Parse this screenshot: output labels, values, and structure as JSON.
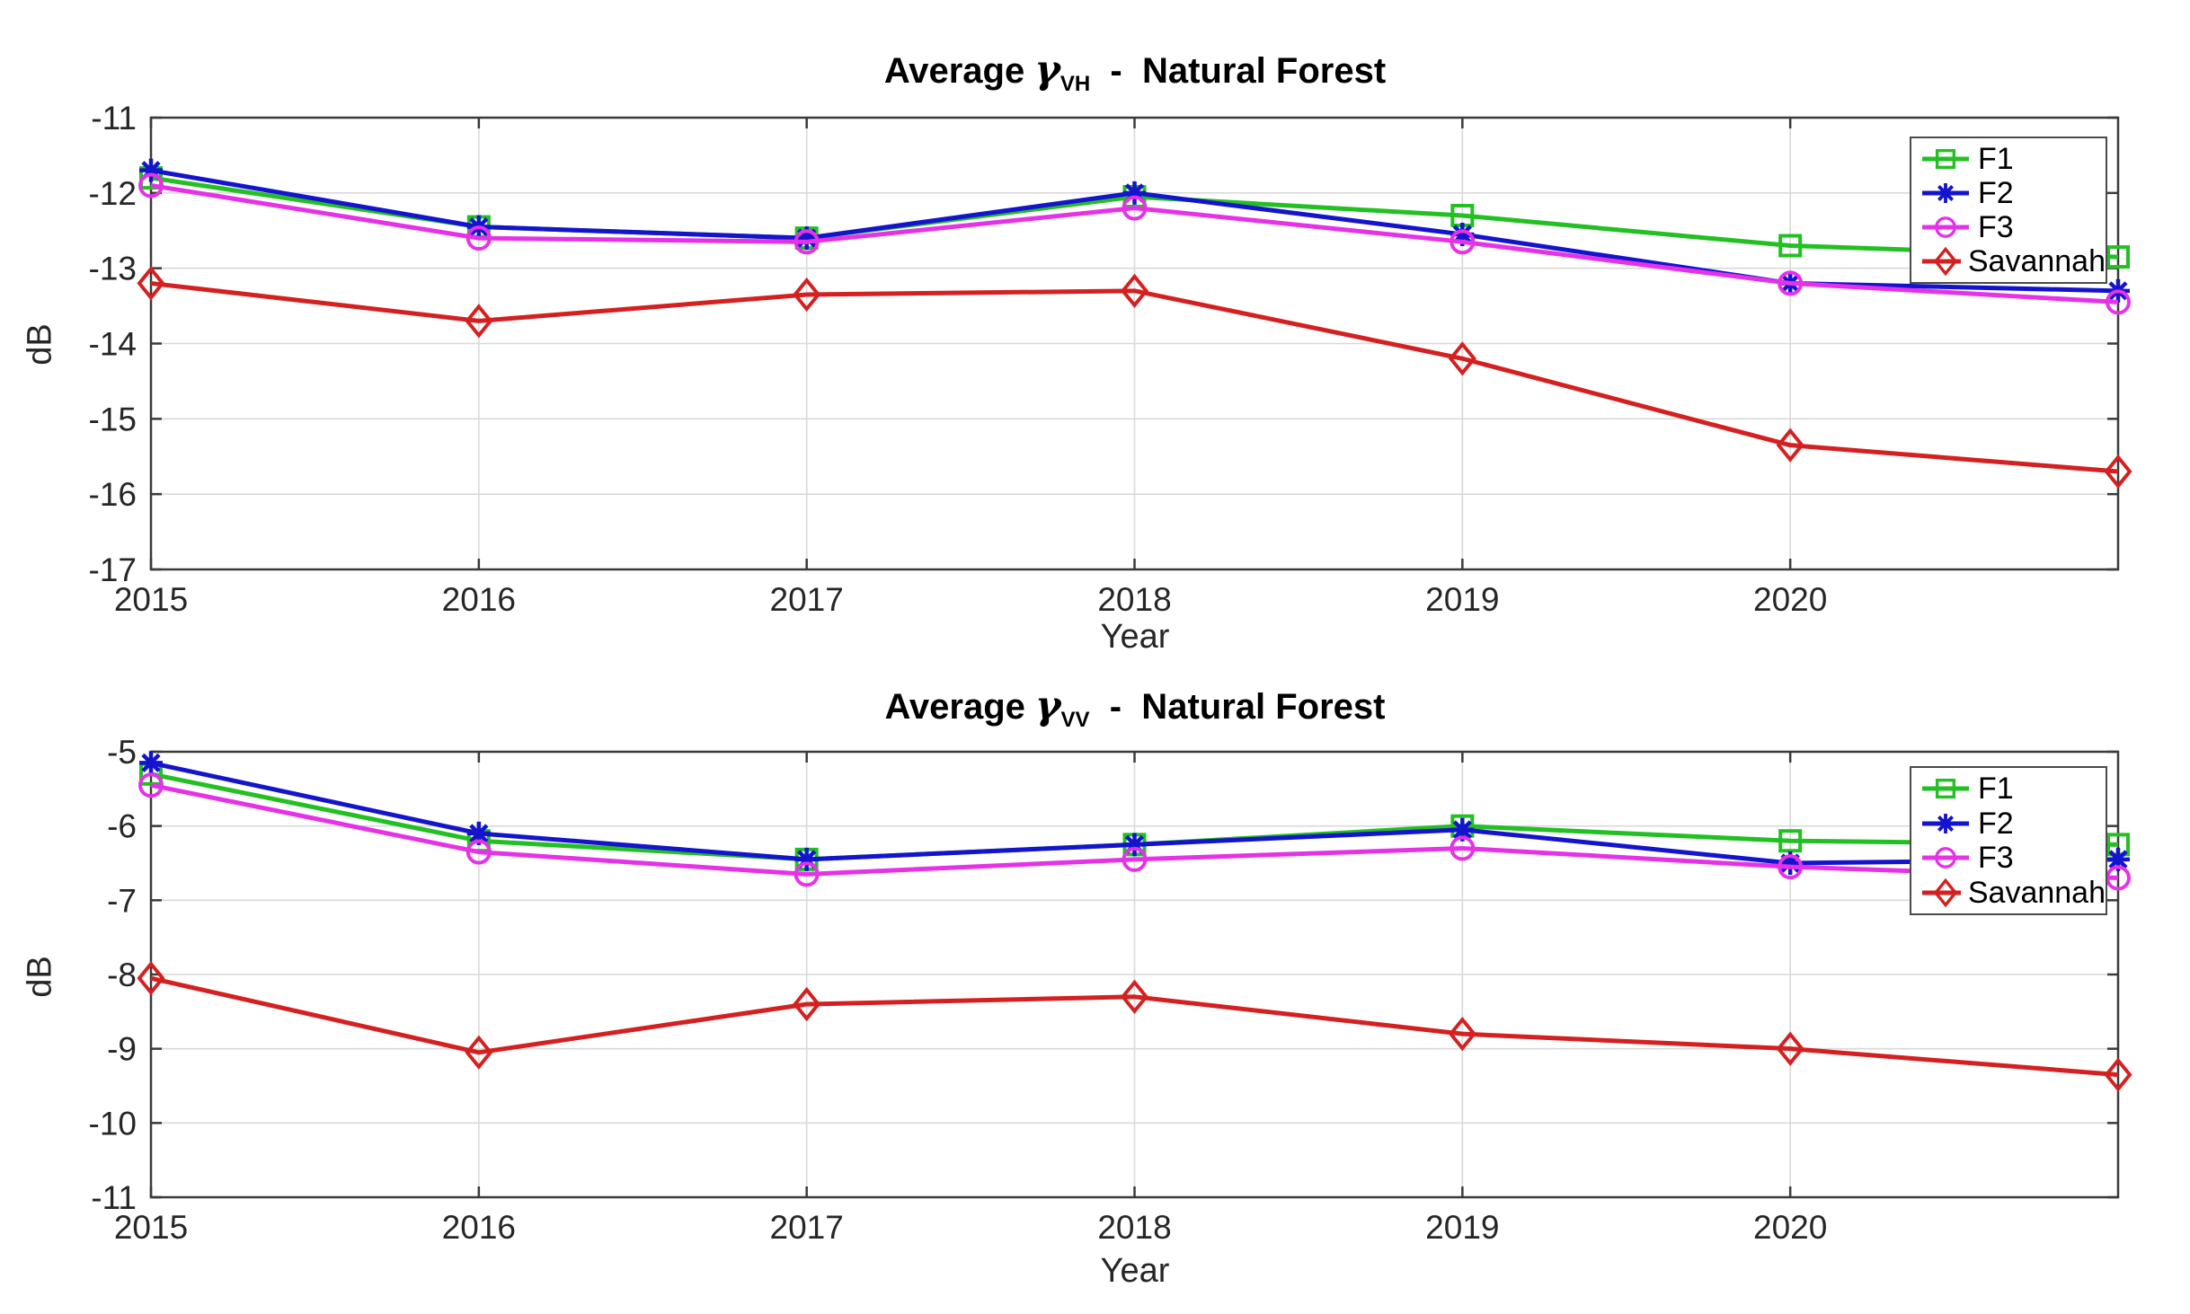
{
  "figure": {
    "background": "#ffffff"
  },
  "colors": {
    "grid": "#d9d9d9",
    "axis": "#3a3a3a",
    "text": "#262626",
    "legend_border": "#4a4a4a",
    "f1_green": "#22c022",
    "f2_blue": "#1414cc",
    "f3_magenta": "#e632e6",
    "savannah_red": "#d42020"
  },
  "series_meta": [
    {
      "name": "F1",
      "color": "#22c022",
      "marker": "square"
    },
    {
      "name": "F2",
      "color": "#1414cc",
      "marker": "asterisk"
    },
    {
      "name": "F3",
      "color": "#e632e6",
      "marker": "circle"
    },
    {
      "name": "Savannah",
      "color": "#d42020",
      "marker": "diamond"
    }
  ],
  "chart_data": [
    {
      "type": "line",
      "title": {
        "prefix": "Average ",
        "symbol": "γ",
        "subscript": "VH",
        "suffix": "  -  Natural Forest"
      },
      "xlabel": "Year",
      "ylabel": "dB",
      "xlim": [
        2015,
        2021
      ],
      "ylim": [
        -17,
        -11
      ],
      "xticks": [
        2015,
        2016,
        2017,
        2018,
        2019,
        2020
      ],
      "yticks": [
        -11,
        -12,
        -13,
        -14,
        -15,
        -16,
        -17
      ],
      "grid": true,
      "legend": [
        "F1",
        "F2",
        "F3",
        "Savannah"
      ],
      "legend_position": "top-right",
      "x": [
        2015,
        2016,
        2017,
        2018,
        2019,
        2020,
        2021
      ],
      "series": [
        {
          "name": "F1",
          "values": [
            -11.8,
            -12.45,
            -12.6,
            -12.05,
            -12.3,
            -12.7,
            -12.85
          ]
        },
        {
          "name": "F2",
          "values": [
            -11.7,
            -12.45,
            -12.6,
            -12.0,
            -12.55,
            -13.2,
            -13.3
          ]
        },
        {
          "name": "F3",
          "values": [
            -11.9,
            -12.6,
            -12.65,
            -12.2,
            -12.65,
            -13.2,
            -13.45
          ]
        },
        {
          "name": "Savannah",
          "values": [
            -13.2,
            -13.7,
            -13.35,
            -13.3,
            -14.2,
            -15.35,
            -15.7
          ]
        }
      ]
    },
    {
      "type": "line",
      "title": {
        "prefix": "Average ",
        "symbol": "γ",
        "subscript": "VV",
        "suffix": "  -  Natural Forest"
      },
      "xlabel": "Year",
      "ylabel": "dB",
      "xlim": [
        2015,
        2021
      ],
      "ylim": [
        -11,
        -5
      ],
      "xticks": [
        2015,
        2016,
        2017,
        2018,
        2019,
        2020
      ],
      "yticks": [
        -5,
        -6,
        -7,
        -8,
        -9,
        -10,
        -11
      ],
      "grid": true,
      "legend": [
        "F1",
        "F2",
        "F3",
        "Savannah"
      ],
      "legend_position": "top-right",
      "x": [
        2015,
        2016,
        2017,
        2018,
        2019,
        2020,
        2021
      ],
      "series": [
        {
          "name": "F1",
          "values": [
            -5.3,
            -6.2,
            -6.45,
            -6.25,
            -6.0,
            -6.2,
            -6.25
          ]
        },
        {
          "name": "F2",
          "values": [
            -5.15,
            -6.1,
            -6.45,
            -6.25,
            -6.05,
            -6.5,
            -6.45
          ]
        },
        {
          "name": "F3",
          "values": [
            -5.45,
            -6.35,
            -6.65,
            -6.45,
            -6.3,
            -6.55,
            -6.7
          ]
        },
        {
          "name": "Savannah",
          "values": [
            -8.05,
            -9.05,
            -8.4,
            -8.3,
            -8.8,
            -9.0,
            -9.35
          ]
        }
      ]
    }
  ]
}
